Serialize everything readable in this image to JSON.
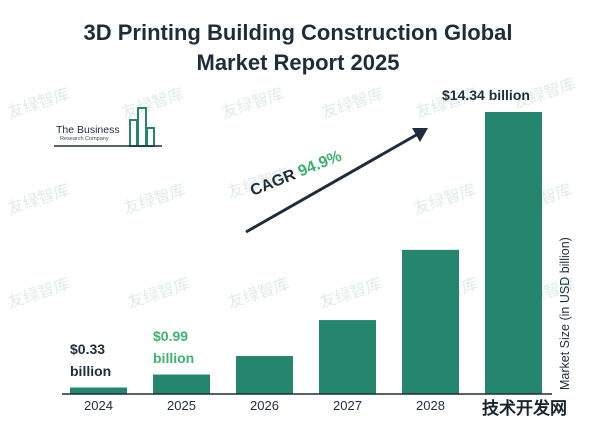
{
  "title_line1": "3D Printing Building Construction Global",
  "title_line2": "Market Report 2025",
  "logo": {
    "name": "The Business",
    "sub": "Research Company"
  },
  "watermark_text": "友绿智库",
  "corner_watermark": "技术开发网",
  "chart_data": {
    "type": "bar",
    "categories": [
      "2024",
      "2025",
      "2026",
      "2027",
      "2028",
      "2029"
    ],
    "values": [
      0.33,
      0.99,
      1.93,
      3.76,
      7.33,
      14.34
    ],
    "ylim": [
      0,
      14.34
    ],
    "ylabel": "Market Size (in USD billion)",
    "xlabel": "",
    "data_labels": [
      {
        "index": 0,
        "line1": "$0.33",
        "line2": "billion",
        "color": "#1f2d3a"
      },
      {
        "index": 1,
        "line1": "$0.99",
        "line2": "billion",
        "color": "#3cb371"
      },
      {
        "index": 5,
        "line1": "$14.34 billion",
        "line2": "",
        "color": "#1f2d3a"
      }
    ],
    "visible_tick_labels": [
      "2024",
      "2025",
      "2026",
      "2027",
      "2028"
    ],
    "annotation": {
      "label": "CAGR",
      "value": "94.9%"
    },
    "bar_color": "#23866d",
    "grid": false
  }
}
